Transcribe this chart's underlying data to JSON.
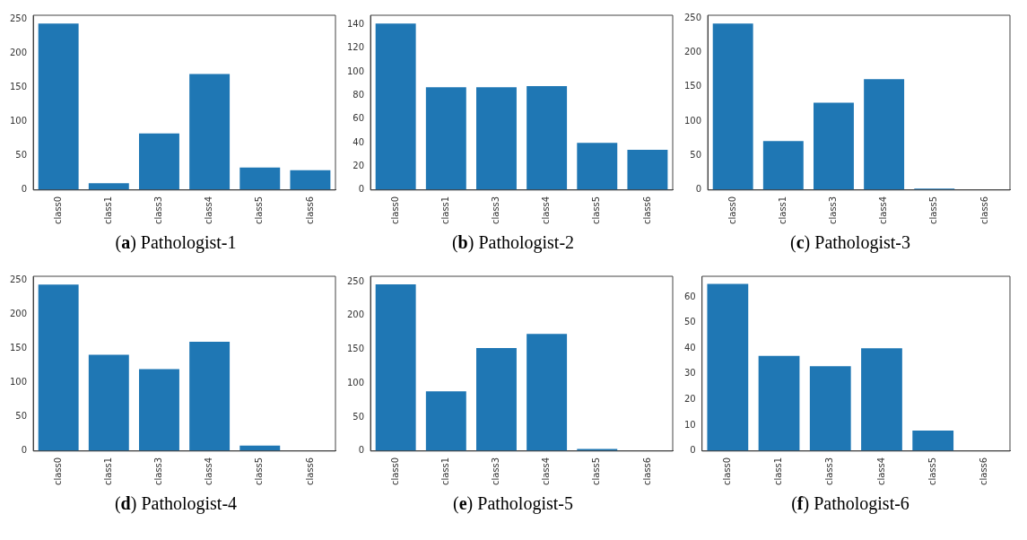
{
  "chart_data": [
    {
      "type": "bar",
      "title": "(a) Pathologist-1",
      "categories": [
        "class0",
        "class1",
        "class3",
        "class4",
        "class5",
        "class6"
      ],
      "values": [
        244,
        10,
        83,
        170,
        33,
        29
      ],
      "color": "#1f77b4",
      "ylim": [
        0,
        256
      ],
      "yticks": [
        0,
        50,
        100,
        150,
        200,
        250
      ]
    },
    {
      "type": "bar",
      "title": "(b) Pathologist-2",
      "categories": [
        "class0",
        "class1",
        "class3",
        "class4",
        "class5",
        "class6"
      ],
      "values": [
        141,
        87,
        87,
        88,
        40,
        34
      ],
      "color": "#1f77b4",
      "ylim": [
        0,
        148
      ],
      "yticks": [
        0,
        20,
        40,
        60,
        80,
        100,
        120,
        140
      ]
    },
    {
      "type": "bar",
      "title": "(c) Pathologist-3",
      "categories": [
        "class0",
        "class1",
        "class3",
        "class4",
        "class5",
        "class6"
      ],
      "values": [
        242,
        71,
        127,
        161,
        2,
        0
      ],
      "color": "#1f77b4",
      "ylim": [
        0,
        254
      ],
      "yticks": [
        0,
        50,
        100,
        150,
        200,
        250
      ]
    },
    {
      "type": "bar",
      "title": "(d) Pathologist-4",
      "categories": [
        "class0",
        "class1",
        "class3",
        "class4",
        "class5",
        "class6"
      ],
      "values": [
        244,
        141,
        120,
        160,
        8,
        0
      ],
      "color": "#1f77b4",
      "ylim": [
        0,
        256
      ],
      "yticks": [
        0,
        50,
        100,
        150,
        200,
        250
      ]
    },
    {
      "type": "bar",
      "title": "(e) Pathologist-5",
      "categories": [
        "class0",
        "class1",
        "class3",
        "class4",
        "class5",
        "class6"
      ],
      "values": [
        246,
        88,
        152,
        173,
        3,
        0
      ],
      "color": "#1f77b4",
      "ylim": [
        0,
        258
      ],
      "yticks": [
        0,
        50,
        100,
        150,
        200,
        250
      ]
    },
    {
      "type": "bar",
      "title": "(f) Pathologist-6",
      "categories": [
        "class0",
        "class1",
        "class3",
        "class4",
        "class5",
        "class6"
      ],
      "values": [
        65,
        37,
        33,
        40,
        8,
        0
      ],
      "color": "#1f77b4",
      "ylim": [
        0,
        68
      ],
      "yticks": [
        0,
        10,
        20,
        30,
        40,
        50,
        60
      ]
    }
  ]
}
